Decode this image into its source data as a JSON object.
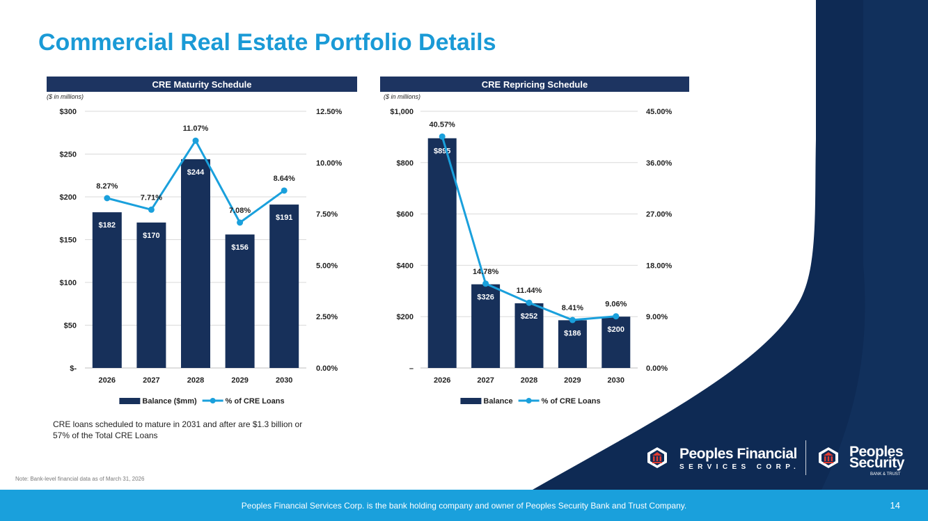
{
  "page": {
    "title": "Commercial Real Estate Portfolio Details",
    "left_note": "CRE loans scheduled to mature in 2031 and after are $1.3 billion or 57% of the Total CRE Loans",
    "footnote": "Note: Bank-level financial data as of March 31, 2026",
    "footer_text": "Peoples Financial Services Corp. is the bank holding company and owner of Peoples Security Bank and Trust Company.",
    "page_number": "14"
  },
  "colors": {
    "title": "#1a9ad6",
    "bar": "#17305a",
    "line": "#1aa0dc",
    "header_bar": "#1d3461",
    "footer": "#1aa0dc",
    "dark_panel": "#0e2a54"
  },
  "logos": {
    "pf_name": "Peoples Financial",
    "pf_sub": "SERVICES CORP.",
    "ps_name_line1": "Peoples",
    "ps_name_line2": "Security",
    "ps_sub": "BANK & TRUST",
    "pf_icon": "bank-shield-icon",
    "ps_icon": "bank-shield-icon"
  },
  "chart_data": [
    {
      "type": "bar",
      "title": "CRE Maturity Schedule",
      "units_note": "($ in millions)",
      "categories": [
        "2026",
        "2027",
        "2028",
        "2029",
        "2030"
      ],
      "series": [
        {
          "name": "Balance ($mm)",
          "kind": "bar",
          "axis": "left",
          "values": [
            182,
            170,
            244,
            156,
            191
          ],
          "labels": [
            "$182",
            "$170",
            "$244",
            "$156",
            "$191"
          ]
        },
        {
          "name": "% of CRE Loans",
          "kind": "line",
          "axis": "right",
          "values": [
            8.27,
            7.71,
            11.07,
            7.08,
            8.64
          ],
          "labels": [
            "8.27%",
            "7.71%",
            "11.07%",
            "7.08%",
            "8.64%"
          ]
        }
      ],
      "left_axis": {
        "ylim": [
          0,
          300
        ],
        "ticks": [
          0,
          50,
          100,
          150,
          200,
          250,
          300
        ],
        "tick_labels": [
          "$-",
          "$50",
          "$100",
          "$150",
          "$200",
          "$250",
          "$300"
        ]
      },
      "right_axis": {
        "ylim": [
          0,
          12.5
        ],
        "ticks": [
          0,
          2.5,
          5,
          7.5,
          10,
          12.5
        ],
        "tick_labels": [
          "0.00%",
          "2.50%",
          "5.00%",
          "7.50%",
          "10.00%",
          "12.50%"
        ]
      },
      "grid": true,
      "legend_position": "bottom"
    },
    {
      "type": "bar",
      "title": "CRE Repricing Schedule",
      "units_note": "($ in millions)",
      "categories": [
        "2026",
        "2027",
        "2028",
        "2029",
        "2030"
      ],
      "series": [
        {
          "name": "Balance",
          "kind": "bar",
          "axis": "left",
          "values": [
            895,
            326,
            252,
            186,
            200
          ],
          "labels": [
            "$895",
            "$326",
            "$252",
            "$186",
            "$200"
          ]
        },
        {
          "name": "% of CRE Loans",
          "kind": "line",
          "axis": "right",
          "values": [
            40.57,
            14.78,
            11.44,
            8.41,
            9.06
          ],
          "labels": [
            "40.57%",
            "14.78%",
            "11.44%",
            "8.41%",
            "9.06%"
          ]
        }
      ],
      "left_axis": {
        "ylim": [
          0,
          1000
        ],
        "ticks": [
          0,
          200,
          400,
          600,
          800,
          1000
        ],
        "tick_labels": [
          "–",
          "$200",
          "$400",
          "$600",
          "$800",
          "$1,000"
        ]
      },
      "right_axis": {
        "ylim": [
          0,
          45
        ],
        "ticks": [
          0,
          9,
          18,
          27,
          36,
          45
        ],
        "tick_labels": [
          "0.00%",
          "9.00%",
          "18.00%",
          "27.00%",
          "36.00%",
          "45.00%"
        ]
      },
      "grid": true,
      "legend_position": "bottom"
    }
  ]
}
